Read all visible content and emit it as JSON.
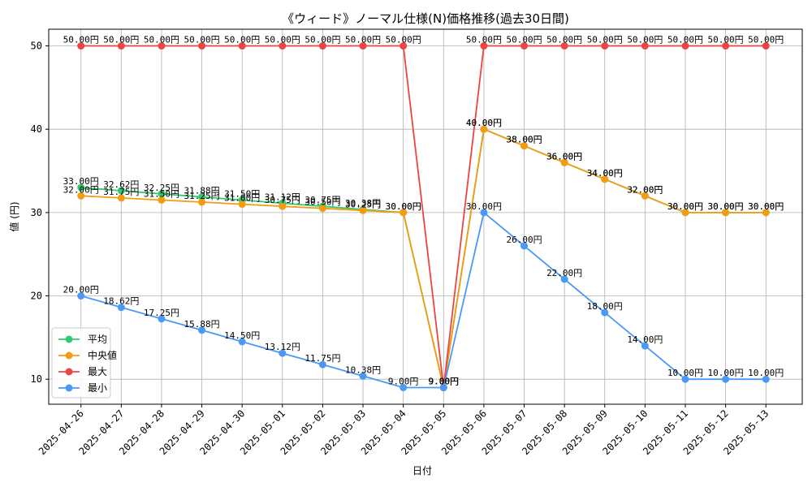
{
  "chart_data": {
    "type": "line",
    "title": "《ウィード》ノーマル仕様(N)価格推移(過去30日間)",
    "xlabel": "日付",
    "ylabel": "値 (円)",
    "value_suffix": "円",
    "x": [
      "2025-04-26",
      "2025-04-27",
      "2025-04-28",
      "2025-04-29",
      "2025-04-30",
      "2025-05-01",
      "2025-05-02",
      "2025-05-03",
      "2025-05-04",
      "2025-05-05",
      "2025-05-06",
      "2025-05-07",
      "2025-05-08",
      "2025-05-09",
      "2025-05-10",
      "2025-05-11",
      "2025-05-12",
      "2025-05-13"
    ],
    "ylim": [
      7,
      52
    ],
    "yticks": [
      10,
      20,
      30,
      40,
      50
    ],
    "grid": true,
    "legend_position": "lower-left",
    "series": [
      {
        "name": "平均",
        "color": "#2ecc71",
        "values": [
          33.0,
          32.62,
          32.25,
          31.88,
          31.5,
          31.12,
          30.75,
          30.38,
          30.0,
          9.0,
          40.0,
          38.0,
          36.0,
          34.0,
          32.0,
          30.0,
          30.0,
          30.0
        ]
      },
      {
        "name": "中央値",
        "color": "#f39c12",
        "values": [
          32.0,
          31.75,
          31.5,
          31.25,
          31.0,
          30.75,
          30.5,
          30.25,
          30.0,
          9.0,
          40.0,
          38.0,
          36.0,
          34.0,
          32.0,
          30.0,
          30.0,
          30.0
        ]
      },
      {
        "name": "最大",
        "color": "#ef4444",
        "values": [
          50.0,
          50.0,
          50.0,
          50.0,
          50.0,
          50.0,
          50.0,
          50.0,
          50.0,
          9.0,
          50.0,
          50.0,
          50.0,
          50.0,
          50.0,
          50.0,
          50.0,
          50.0
        ]
      },
      {
        "name": "最小",
        "color": "#4a9af5",
        "values": [
          20.0,
          18.62,
          17.25,
          15.88,
          14.5,
          13.12,
          11.75,
          10.38,
          9.0,
          9.0,
          30.0,
          26.0,
          22.0,
          18.0,
          14.0,
          10.0,
          10.0,
          10.0
        ]
      }
    ]
  }
}
